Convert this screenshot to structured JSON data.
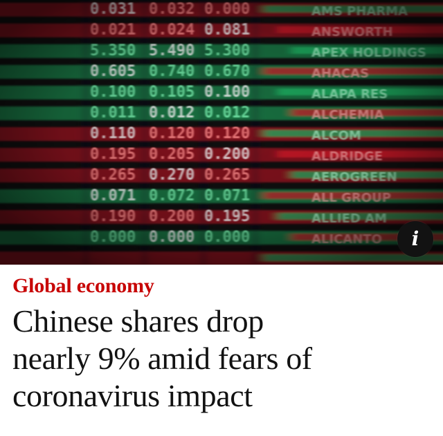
{
  "article": {
    "kicker": "Global economy",
    "headline_lines": [
      "Chinese shares drop",
      "nearly 9% amid fears of",
      "coronavirus impact"
    ]
  },
  "image": {
    "info_icon": "info-icon",
    "info_glyph": "i",
    "ticker_rows": [
      [
        "0.031",
        "0.032",
        "0.000"
      ],
      [
        "0.021",
        "0.024",
        "0.081"
      ],
      [
        "5.350",
        "5.490",
        "5.300"
      ],
      [
        "0.605",
        "0.740",
        "0.670"
      ],
      [
        "0.100",
        "0.105",
        "0.100"
      ],
      [
        "0.011",
        "0.012",
        "0.012"
      ],
      [
        "0.110",
        "0.120",
        "0.120"
      ],
      [
        "0.195",
        "0.205",
        "0.200"
      ],
      [
        "0.265",
        "0.270",
        "0.265"
      ],
      [
        "0.071",
        "0.072",
        "0.071"
      ],
      [
        "0.190",
        "0.200",
        "0.195"
      ],
      [
        "0.000",
        "0.000",
        "0.000"
      ]
    ],
    "name_column": [
      "AMS PHARMA",
      "ANSWORTH",
      "APEX HOLDINGS",
      "AHACAS",
      "ALAPA RES",
      "ALCHEMIA",
      "ALCOM",
      "ALDRIDGE",
      "AEROGREEN",
      "ALL GROUP",
      "ALLIED AM",
      "ALICANTO"
    ]
  },
  "colors": {
    "accent": "#c70000",
    "headline": "#121212",
    "ticker_green": "#1fbf6a",
    "ticker_red": "#e0182a"
  }
}
